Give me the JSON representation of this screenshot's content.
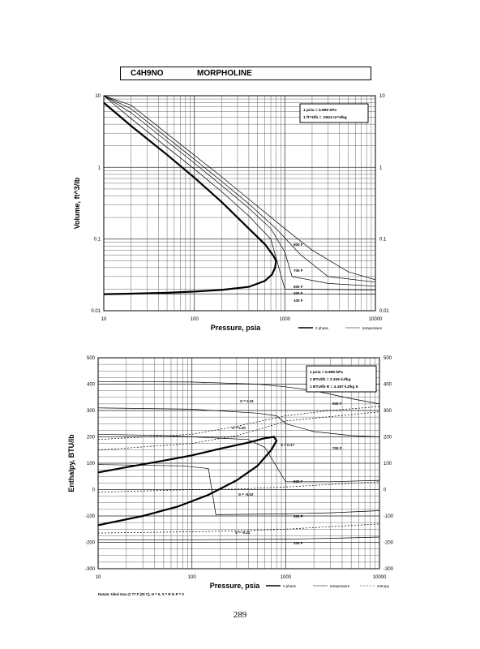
{
  "header": {
    "formula": "C4H9NO",
    "name": "MORPHOLINE"
  },
  "page_number": "289",
  "chart_data": [
    {
      "type": "line",
      "xscale": "log",
      "yscale": "log",
      "xlabel": "Pressure,  psia",
      "ylabel": "Volume, ft^3/lb",
      "xlim": [
        10,
        10000
      ],
      "ylim": [
        0.01,
        10
      ],
      "x_ticks": [
        "10",
        "100",
        "1000",
        "10000"
      ],
      "y_ticks": [
        "0.01",
        "0.1",
        "1",
        "10"
      ],
      "y_ticks_right": [
        "0.01",
        "0.1",
        "1",
        "10"
      ],
      "grid": true,
      "conversion_box": [
        "1 psia = 6.895 kPa",
        "1 ft^3/lb = .0624 m^3/kg"
      ],
      "legend": [
        {
          "label": "2 phase",
          "style": "thick"
        },
        {
          "label": "temperature",
          "style": "thin"
        }
      ],
      "series": [
        {
          "kind": "2 phase",
          "points": [
            [
              10,
              8
            ],
            [
              20,
              3.8
            ],
            [
              50,
              1.5
            ],
            [
              100,
              0.72
            ],
            [
              200,
              0.33
            ],
            [
              400,
              0.14
            ],
            [
              600,
              0.085
            ],
            [
              750,
              0.058
            ],
            [
              800,
              0.05
            ],
            [
              780,
              0.04
            ],
            [
              720,
              0.032
            ],
            [
              600,
              0.026
            ],
            [
              400,
              0.0215
            ],
            [
              200,
              0.0195
            ],
            [
              100,
              0.0185
            ],
            [
              50,
              0.0178
            ],
            [
              20,
              0.0173
            ],
            [
              10,
              0.017
            ]
          ]
        },
        {
          "kind": "temperature",
          "name": "100 F",
          "points": [
            [
              10,
              0.0171
            ],
            [
              100,
              0.0172
            ],
            [
              1000,
              0.0172
            ],
            [
              10000,
              0.017
            ]
          ]
        },
        {
          "kind": "temperature",
          "name": "300 F",
          "points": [
            [
              10,
              10
            ],
            [
              20,
              4.8
            ],
            [
              50,
              1.9
            ],
            [
              100,
              0.95
            ],
            [
              200,
              0.46
            ],
            [
              400,
              0.21
            ],
            [
              700,
              0.1
            ],
            [
              1000,
              0.02
            ],
            [
              10000,
              0.0195
            ]
          ]
        },
        {
          "kind": "temperature",
          "name": "500 F",
          "points": [
            [
              10,
              10
            ],
            [
              20,
              5.8
            ],
            [
              50,
              2.3
            ],
            [
              100,
              1.15
            ],
            [
              200,
              0.56
            ],
            [
              400,
              0.27
            ],
            [
              700,
              0.14
            ],
            [
              1000,
              0.066
            ],
            [
              1200,
              0.03
            ],
            [
              3000,
              0.024
            ],
            [
              10000,
              0.022
            ]
          ]
        },
        {
          "kind": "temperature",
          "name": "700 F",
          "points": [
            [
              10,
              10
            ],
            [
              20,
              6.6
            ],
            [
              50,
              2.6
            ],
            [
              100,
              1.3
            ],
            [
              200,
              0.64
            ],
            [
              400,
              0.31
            ],
            [
              800,
              0.14
            ],
            [
              1500,
              0.06
            ],
            [
              3000,
              0.03
            ],
            [
              10000,
              0.025
            ]
          ]
        },
        {
          "kind": "temperature",
          "name": "900 F",
          "points": [
            [
              10,
              10
            ],
            [
              20,
              7.4
            ],
            [
              50,
              2.95
            ],
            [
              100,
              1.48
            ],
            [
              200,
              0.74
            ],
            [
              400,
              0.36
            ],
            [
              1000,
              0.14
            ],
            [
              2000,
              0.07
            ],
            [
              5000,
              0.035
            ],
            [
              10000,
              0.027
            ]
          ]
        }
      ],
      "annotations": [
        "900 F",
        "700 F",
        "500 F",
        "300 F",
        "100 F"
      ]
    },
    {
      "type": "line",
      "xscale": "log",
      "yscale": "linear",
      "xlabel": "Pressure,  psia",
      "ylabel": "Enthalpy, BTU/lb",
      "xlim": [
        10,
        10000
      ],
      "ylim": [
        -300,
        500
      ],
      "x_ticks": [
        "10",
        "100",
        "1000",
        "10000"
      ],
      "y_ticks": [
        "-300",
        "-200",
        "-100",
        "0",
        "100",
        "200",
        "300",
        "400",
        "500"
      ],
      "y_ticks_right": [
        "-300",
        "-200",
        "-100",
        "0",
        "100",
        "200",
        "300",
        "400",
        "500"
      ],
      "grid": true,
      "conversion_box": [
        "1 psia = 6.895 kPa",
        "1 BTU/lb = 2.326 kJ/kg",
        "1 BTU/lb R = 4.187 kJ/kg K"
      ],
      "legend": [
        {
          "label": "2 phase",
          "style": "thick"
        },
        {
          "label": "temperature",
          "style": "thin"
        },
        {
          "label": "entropy",
          "style": "dotted"
        }
      ],
      "footnote": "Datum: Ideal Gas @ 77 F (25 C), H = 0,  S = R ln P = 0",
      "series": [
        {
          "kind": "2 phase",
          "points": [
            [
              10,
              65
            ],
            [
              20,
              85
            ],
            [
              50,
              110
            ],
            [
              100,
              130
            ],
            [
              200,
              155
            ],
            [
              400,
              178
            ],
            [
              600,
              195
            ],
            [
              750,
              200
            ],
            [
              800,
              185
            ],
            [
              700,
              150
            ],
            [
              500,
              90
            ],
            [
              300,
              35
            ],
            [
              150,
              -20
            ],
            [
              70,
              -65
            ],
            [
              30,
              -100
            ],
            [
              10,
              -135
            ]
          ]
        },
        {
          "kind": "temperature",
          "name": "900 F",
          "points": [
            [
              10,
              410
            ],
            [
              100,
              408
            ],
            [
              500,
              400
            ],
            [
              1000,
              390
            ],
            [
              2000,
              375
            ],
            [
              5000,
              345
            ],
            [
              10000,
              325
            ]
          ]
        },
        {
          "kind": "temperature",
          "name": "700 F",
          "points": [
            [
              10,
              310
            ],
            [
              100,
              305
            ],
            [
              500,
              290
            ],
            [
              800,
              280
            ],
            [
              1000,
              250
            ],
            [
              2000,
              220
            ],
            [
              5000,
              205
            ],
            [
              10000,
              200
            ]
          ]
        },
        {
          "kind": "temperature",
          "name": "500 F",
          "points": [
            [
              10,
              210
            ],
            [
              50,
              205
            ],
            [
              200,
              195
            ],
            [
              400,
              190
            ],
            [
              600,
              160
            ],
            [
              1000,
              30
            ],
            [
              3000,
              30
            ],
            [
              10000,
              35
            ]
          ]
        },
        {
          "kind": "temperature",
          "name": "300 F",
          "points": [
            [
              10,
              95
            ],
            [
              80,
              90
            ],
            [
              150,
              80
            ],
            [
              180,
              -95
            ],
            [
              1000,
              -92
            ],
            [
              3000,
              -88
            ],
            [
              10000,
              -80
            ]
          ]
        },
        {
          "kind": "temperature",
          "name": "100 F",
          "points": [
            [
              10,
              -190
            ],
            [
              100,
              -190
            ],
            [
              1000,
              -188
            ],
            [
              3000,
              -185
            ],
            [
              10000,
              -180
            ]
          ]
        },
        {
          "kind": "entropy",
          "name": "S = 0.31",
          "points": [
            [
              10,
              190
            ],
            [
              100,
              210
            ],
            [
              300,
              240
            ],
            [
              1000,
              280
            ],
            [
              3000,
              300
            ],
            [
              10000,
              315
            ]
          ]
        },
        {
          "kind": "entropy",
          "name": "S = 0.20",
          "points": [
            [
              10,
              150
            ],
            [
              100,
              175
            ],
            [
              300,
              205
            ],
            [
              600,
              235
            ],
            [
              1000,
              260
            ],
            [
              10000,
              295
            ]
          ]
        },
        {
          "kind": "entropy",
          "name": "S = -0.02",
          "points": [
            [
              10,
              -10
            ],
            [
              100,
              0
            ],
            [
              300,
              2
            ],
            [
              1000,
              10
            ],
            [
              10000,
              30
            ]
          ]
        },
        {
          "kind": "entropy",
          "name": "S = -0.21",
          "points": [
            [
              10,
              -165
            ],
            [
              100,
              -160
            ],
            [
              300,
              -157
            ],
            [
              1000,
              -150
            ],
            [
              10000,
              -130
            ]
          ]
        }
      ],
      "annotations": [
        "S = 0.31",
        "S = 0.20",
        "S = 0.17",
        "S = -0.02",
        "S = -0.21",
        "900 F",
        "700 F",
        "500 F",
        "300 F",
        "100 F"
      ]
    }
  ]
}
